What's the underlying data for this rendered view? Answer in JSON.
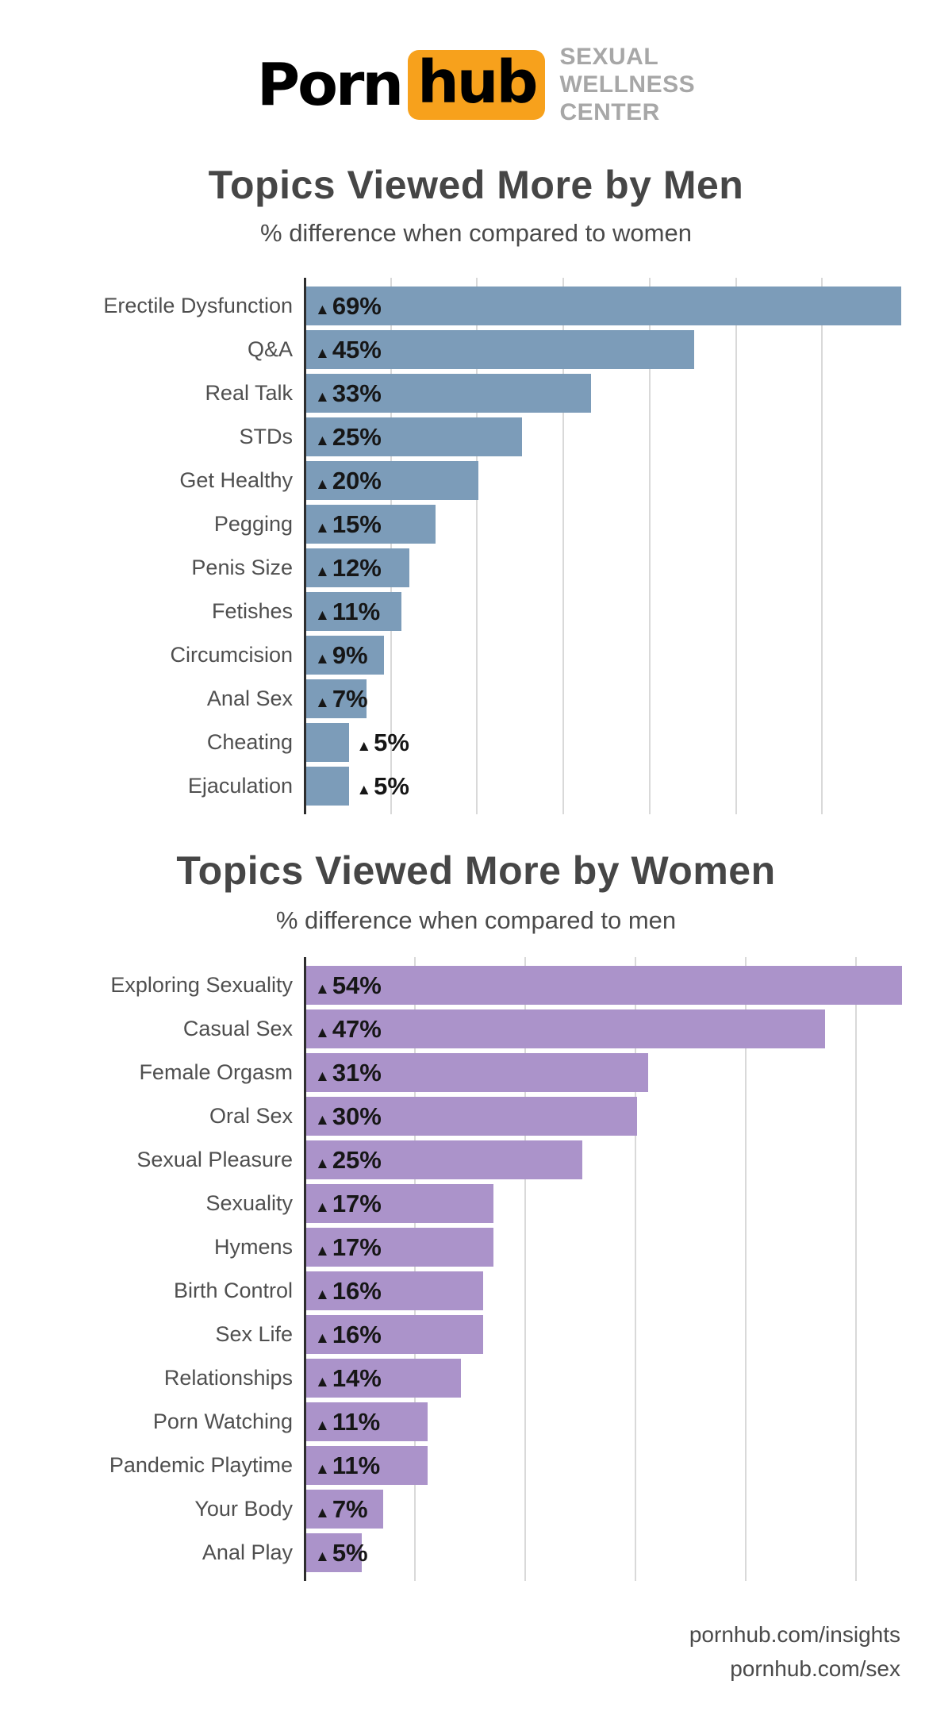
{
  "header": {
    "logo_part1": "Porn",
    "logo_part2": "hub",
    "logo_bg_color": "#f7a11c",
    "tagline": [
      "SEXUAL",
      "WELLNESS",
      "CENTER"
    ]
  },
  "chart_data": [
    {
      "type": "bar",
      "orientation": "horizontal",
      "title": "Topics Viewed More by Men",
      "subtitle": "% difference when compared to women",
      "categories": [
        "Erectile Dysfunction",
        "Q&A",
        "Real Talk",
        "STDs",
        "Get Healthy",
        "Pegging",
        "Penis Size",
        "Fetishes",
        "Circumcision",
        "Anal Sex",
        "Cheating",
        "Ejaculation"
      ],
      "values": [
        69,
        45,
        33,
        25,
        20,
        15,
        12,
        11,
        9,
        7,
        5,
        5
      ],
      "value_labels": [
        "69%",
        "45%",
        "33%",
        "25%",
        "20%",
        "15%",
        "12%",
        "11%",
        "9%",
        "7%",
        "5%",
        "5%"
      ],
      "marker": "▲",
      "bar_color": "#7c9cb9",
      "axis_color": "#2e2e2e",
      "grid_color": "#d9d9d9",
      "xlim": [
        0,
        73.3
      ],
      "gridlines": [
        10,
        20,
        30,
        40,
        50,
        60
      ],
      "grid": true,
      "legend": false
    },
    {
      "type": "bar",
      "orientation": "horizontal",
      "title": "Topics Viewed More by Women",
      "subtitle": "% difference when compared to men",
      "categories": [
        "Exploring Sexuality",
        "Casual Sex",
        "Female Orgasm",
        "Oral Sex",
        "Sexual Pleasure",
        "Sexuality",
        "Hymens",
        "Birth Control",
        "Sex Life",
        "Relationships",
        "Porn Watching",
        "Pandemic Playtime",
        "Your Body",
        "Anal Play"
      ],
      "values": [
        54,
        47,
        31,
        30,
        25,
        17,
        17,
        16,
        16,
        14,
        11,
        11,
        7,
        5
      ],
      "value_labels": [
        "54%",
        "47%",
        "31%",
        "30%",
        "25%",
        "17%",
        "17%",
        "16%",
        "16%",
        "14%",
        "11%",
        "11%",
        "7%",
        "5%"
      ],
      "marker": "▲",
      "bar_color": "#ab93ca",
      "axis_color": "#2e2e2e",
      "grid_color": "#d9d9d9",
      "xlim": [
        0,
        57.3
      ],
      "gridlines": [
        10,
        20,
        30,
        40,
        50
      ],
      "grid": true,
      "legend": false
    }
  ],
  "footer": {
    "lines": [
      "pornhub.com/insights",
      "pornhub.com/sex"
    ]
  }
}
